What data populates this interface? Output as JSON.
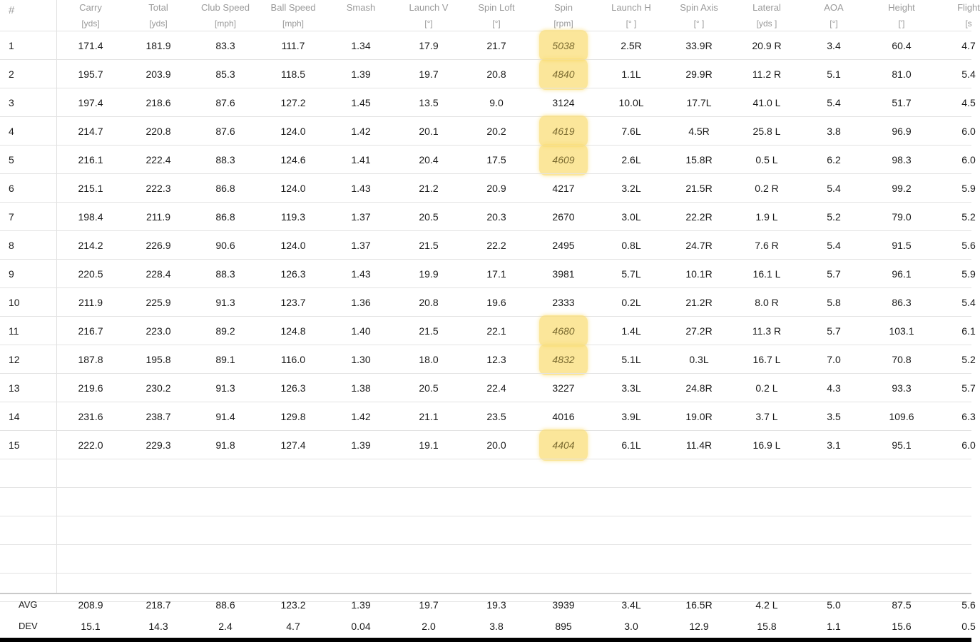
{
  "columns": [
    {
      "name": "Carry",
      "unit": "[yds]"
    },
    {
      "name": "Total",
      "unit": "[yds]"
    },
    {
      "name": "Club Speed",
      "unit": "[mph]"
    },
    {
      "name": "Ball Speed",
      "unit": "[mph]"
    },
    {
      "name": "Smash",
      "unit": ""
    },
    {
      "name": "Launch V",
      "unit": "[°]"
    },
    {
      "name": "Spin Loft",
      "unit": "[°]"
    },
    {
      "name": "Spin",
      "unit": "[rpm]"
    },
    {
      "name": "Launch H",
      "unit": "[° ]"
    },
    {
      "name": "Spin Axis",
      "unit": "[° ]"
    },
    {
      "name": "Lateral",
      "unit": "[yds ]"
    },
    {
      "name": "AOA",
      "unit": "[°]"
    },
    {
      "name": "Height",
      "unit": "[']"
    },
    {
      "name": "Flight",
      "unit": "[s"
    }
  ],
  "header_hash": "#",
  "rows": [
    {
      "index": "1",
      "values": [
        "171.4",
        "181.9",
        "83.3",
        "111.7",
        "1.34",
        "17.9",
        "21.7",
        "5038",
        "2.5R",
        "33.9R",
        "20.9 R",
        "3.4",
        "60.4",
        "4.7"
      ],
      "highlight_spin": true
    },
    {
      "index": "2",
      "values": [
        "195.7",
        "203.9",
        "85.3",
        "118.5",
        "1.39",
        "19.7",
        "20.8",
        "4840",
        "1.1L",
        "29.9R",
        "11.2 R",
        "5.1",
        "81.0",
        "5.4"
      ],
      "highlight_spin": true
    },
    {
      "index": "3",
      "values": [
        "197.4",
        "218.6",
        "87.6",
        "127.2",
        "1.45",
        "13.5",
        "9.0",
        "3124",
        "10.0L",
        "17.7L",
        "41.0 L",
        "5.4",
        "51.7",
        "4.5"
      ],
      "highlight_spin": false
    },
    {
      "index": "4",
      "values": [
        "214.7",
        "220.8",
        "87.6",
        "124.0",
        "1.42",
        "20.1",
        "20.2",
        "4619",
        "7.6L",
        "4.5R",
        "25.8 L",
        "3.8",
        "96.9",
        "6.0"
      ],
      "highlight_spin": true
    },
    {
      "index": "5",
      "values": [
        "216.1",
        "222.4",
        "88.3",
        "124.6",
        "1.41",
        "20.4",
        "17.5",
        "4609",
        "2.6L",
        "15.8R",
        "0.5 L",
        "6.2",
        "98.3",
        "6.0"
      ],
      "highlight_spin": true
    },
    {
      "index": "6",
      "values": [
        "215.1",
        "222.3",
        "86.8",
        "124.0",
        "1.43",
        "21.2",
        "20.9",
        "4217",
        "3.2L",
        "21.5R",
        "0.2 R",
        "5.4",
        "99.2",
        "5.9"
      ],
      "highlight_spin": false
    },
    {
      "index": "7",
      "values": [
        "198.4",
        "211.9",
        "86.8",
        "119.3",
        "1.37",
        "20.5",
        "20.3",
        "2670",
        "3.0L",
        "22.2R",
        "1.9 L",
        "5.2",
        "79.0",
        "5.2"
      ],
      "highlight_spin": false
    },
    {
      "index": "8",
      "values": [
        "214.2",
        "226.9",
        "90.6",
        "124.0",
        "1.37",
        "21.5",
        "22.2",
        "2495",
        "0.8L",
        "24.7R",
        "7.6 R",
        "5.4",
        "91.5",
        "5.6"
      ],
      "highlight_spin": false
    },
    {
      "index": "9",
      "values": [
        "220.5",
        "228.4",
        "88.3",
        "126.3",
        "1.43",
        "19.9",
        "17.1",
        "3981",
        "5.7L",
        "10.1R",
        "16.1 L",
        "5.7",
        "96.1",
        "5.9"
      ],
      "highlight_spin": false
    },
    {
      "index": "10",
      "values": [
        "211.9",
        "225.9",
        "91.3",
        "123.7",
        "1.36",
        "20.8",
        "19.6",
        "2333",
        "0.2L",
        "21.2R",
        "8.0 R",
        "5.8",
        "86.3",
        "5.4"
      ],
      "highlight_spin": false
    },
    {
      "index": "11",
      "values": [
        "216.7",
        "223.0",
        "89.2",
        "124.8",
        "1.40",
        "21.5",
        "22.1",
        "4680",
        "1.4L",
        "27.2R",
        "11.3 R",
        "5.7",
        "103.1",
        "6.1"
      ],
      "highlight_spin": true
    },
    {
      "index": "12",
      "values": [
        "187.8",
        "195.8",
        "89.1",
        "116.0",
        "1.30",
        "18.0",
        "12.3",
        "4832",
        "5.1L",
        "0.3L",
        "16.7 L",
        "7.0",
        "70.8",
        "5.2"
      ],
      "highlight_spin": true
    },
    {
      "index": "13",
      "values": [
        "219.6",
        "230.2",
        "91.3",
        "126.3",
        "1.38",
        "20.5",
        "22.4",
        "3227",
        "3.3L",
        "24.8R",
        "0.2 L",
        "4.3",
        "93.3",
        "5.7"
      ],
      "highlight_spin": false
    },
    {
      "index": "14",
      "values": [
        "231.6",
        "238.7",
        "91.4",
        "129.8",
        "1.42",
        "21.1",
        "23.5",
        "4016",
        "3.9L",
        "19.0R",
        "3.7 L",
        "3.5",
        "109.6",
        "6.3"
      ],
      "highlight_spin": false
    },
    {
      "index": "15",
      "values": [
        "222.0",
        "229.3",
        "91.8",
        "127.4",
        "1.39",
        "19.1",
        "20.0",
        "4404",
        "6.1L",
        "11.4R",
        "16.9 L",
        "3.1",
        "95.1",
        "6.0"
      ],
      "highlight_spin": true
    }
  ],
  "summary": [
    {
      "label": "AVG",
      "values": [
        "208.9",
        "218.7",
        "88.6",
        "123.2",
        "1.39",
        "19.7",
        "19.3",
        "3939",
        "3.4L",
        "16.5R",
        "4.2 L",
        "5.0",
        "87.5",
        "5.6"
      ]
    },
    {
      "label": "DEV",
      "values": [
        "15.1",
        "14.3",
        "2.4",
        "4.7",
        "0.04",
        "2.0",
        "3.8",
        "895",
        "3.0",
        "12.9",
        "15.8",
        "1.1",
        "15.6",
        "0.5"
      ]
    }
  ],
  "colors": {
    "highlight": "#fade78",
    "header_text": "#9a9a9a",
    "grid": "#e3e3e3"
  }
}
